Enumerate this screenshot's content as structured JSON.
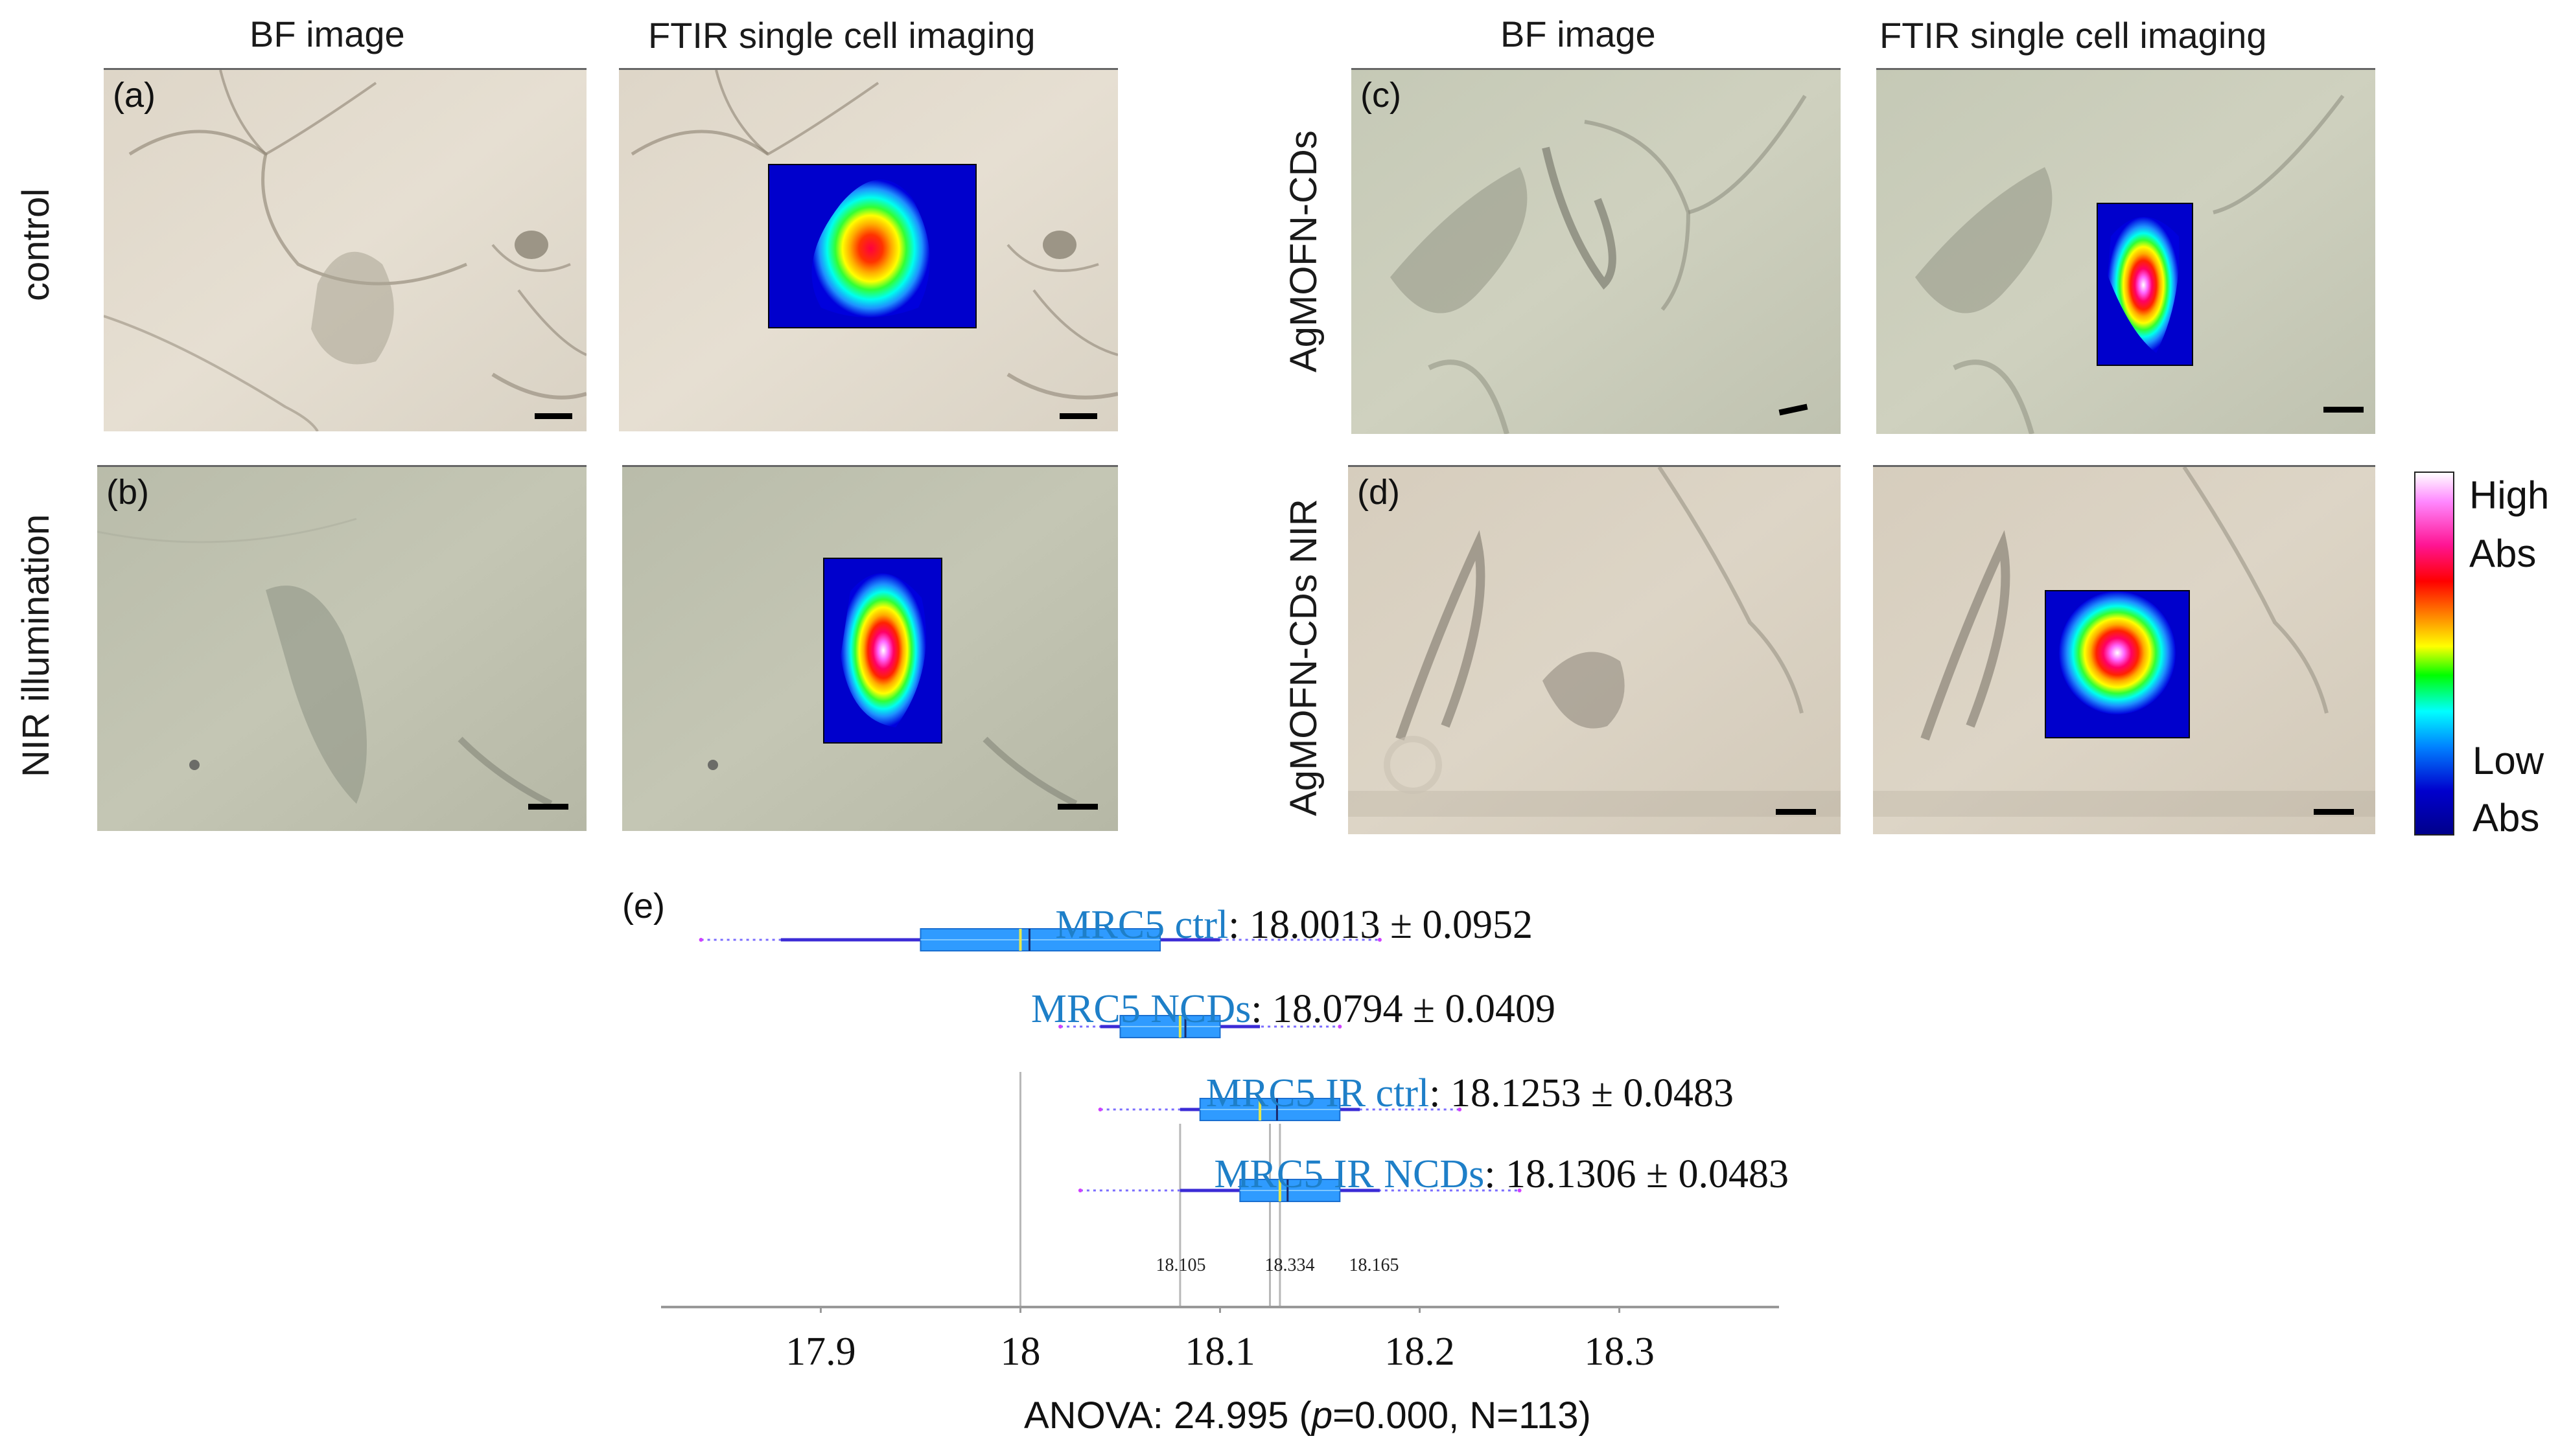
{
  "headers": {
    "bf_left": "BF image",
    "ftir_left": "FTIR single cell imaging",
    "bf_right": "BF image",
    "ftir_right": "FTIR single cell imaging"
  },
  "row_labels": {
    "control": "control",
    "nir_illumination": "NIR illumination",
    "agmofn_cds": "AgMOFN-CDs",
    "agmofn_cds_nir": "AgMOFN-CDs NIR"
  },
  "panel_labels": {
    "a": "(a)",
    "b": "(b)",
    "c": "(c)",
    "d": "(d)",
    "e": "(e)"
  },
  "colorbar": {
    "high": "High",
    "abs_top": "Abs",
    "low": "Low",
    "abs_bottom": "Abs",
    "colors": [
      "#ffffff",
      "#ff88ff",
      "#ff1493",
      "#ff0000",
      "#ff8c00",
      "#ffff00",
      "#00ff00",
      "#00ffff",
      "#0080ff",
      "#0000cd",
      "#00008b"
    ]
  },
  "chart_data": {
    "type": "box",
    "series": [
      {
        "name": "MRC5 ctrl",
        "stat": "18.0013 ± 0.0952"
      },
      {
        "name": "MRC5 NCDs",
        "stat": "18.0794 ± 0.0409"
      },
      {
        "name": "MRC5 IR ctrl",
        "stat": "18.1253 ± 0.0483"
      },
      {
        "name": "MRC5 IR NCDs",
        "stat": "18.1306 ± 0.0483"
      }
    ],
    "boxes": [
      {
        "whisker_min": 17.84,
        "q1": 17.95,
        "median": 18.0,
        "q3": 18.07,
        "whisker_max": 18.18,
        "inner_min": 17.88,
        "inner_max": 18.1,
        "mean": 18.0013
      },
      {
        "whisker_min": 18.02,
        "q1": 18.05,
        "median": 18.08,
        "q3": 18.1,
        "whisker_max": 18.16,
        "inner_min": 18.04,
        "inner_max": 18.12,
        "mean": 18.0794
      },
      {
        "whisker_min": 18.04,
        "q1": 18.09,
        "median": 18.12,
        "q3": 18.16,
        "whisker_max": 18.22,
        "inner_min": 18.08,
        "inner_max": 18.17,
        "mean": 18.1253
      },
      {
        "whisker_min": 18.03,
        "q1": 18.11,
        "median": 18.13,
        "q3": 18.16,
        "whisker_max": 18.25,
        "inner_min": 18.08,
        "inner_max": 18.18,
        "mean": 18.1306
      }
    ],
    "reference_lines": [
      18.0,
      18.08,
      18.125,
      18.13
    ],
    "annotations": [
      "18.105",
      "18.334",
      "18.165"
    ],
    "x_ticks": [
      "17.9",
      "18",
      "18.1",
      "18.2",
      "18.3"
    ],
    "x_tick_values": [
      17.9,
      18.0,
      18.1,
      18.2,
      18.3
    ],
    "xlim": [
      17.82,
      18.38
    ],
    "xlabel": "ANOVA: 24.995 (p=0.000, N=113)",
    "xlabel_parts": {
      "pre": "ANOVA: 24.995 (",
      "p": "p",
      "post": "=0.000, N=113)"
    }
  }
}
